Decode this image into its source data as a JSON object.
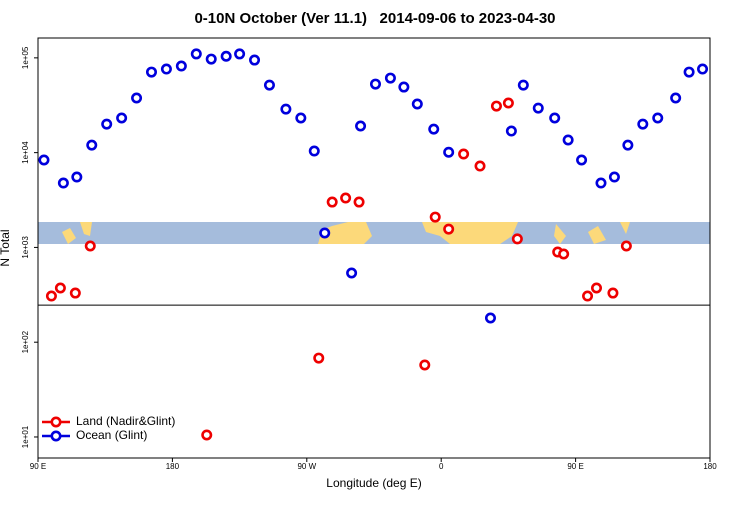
{
  "chart_data": {
    "type": "scatter",
    "title": "0-10N October (Ver 11.1)   2014-09-06 to 2023-04-30",
    "xlabel": "Longitude (deg E)",
    "ylabel": "N Total",
    "xlim": [
      90,
      540
    ],
    "xticks": [
      {
        "value": 90,
        "label": "90 E"
      },
      180,
      {
        "value": 270,
        "label": "90 W"
      },
      {
        "value": 360,
        "label": "0"
      },
      {
        "value": 450,
        "label": "90 E"
      },
      {
        "value": 540,
        "label": "180"
      }
    ],
    "ylim": [
      6,
      162000
    ],
    "log_y": true,
    "yticks": [
      {
        "value": 10,
        "label": "1e+01"
      },
      {
        "value": 100,
        "label": "1e+02"
      },
      {
        "value": 1000,
        "label": "1e+03"
      },
      {
        "value": 10000,
        "label": "1e+04"
      },
      {
        "value": 100000,
        "label": "1e+05"
      }
    ],
    "hline": 246,
    "legend": "lower left",
    "series": [
      {
        "name": "Land (Nadir&Glint)",
        "color": "#ee0000",
        "x": [
          99,
          105,
          115,
          125,
          203,
          278,
          287,
          296,
          305,
          349,
          356,
          365,
          375,
          386,
          397,
          405,
          411,
          438,
          442,
          458,
          464,
          475,
          484
        ],
        "values": [
          307,
          373,
          330,
          1035,
          10.5,
          68,
          3010,
          3320,
          3010,
          57.5,
          2090,
          1560,
          9670,
          7220,
          31000,
          33400,
          1230,
          894,
          852,
          307,
          373,
          330,
          1035
        ]
      },
      {
        "name": "Ocean (Glint)",
        "color": "#0000dd",
        "x": [
          94,
          107,
          116,
          126,
          136,
          146,
          156,
          166,
          176,
          186,
          196,
          206,
          216,
          225,
          235,
          245,
          256,
          266,
          275,
          282,
          300,
          306,
          316,
          326,
          335,
          344,
          355,
          365,
          393,
          407,
          415,
          425,
          436,
          445,
          454,
          467,
          476,
          485,
          495,
          505,
          517,
          526,
          535
        ],
        "values": [
          8360,
          4780,
          5530,
          12000,
          20000,
          23200,
          37700,
          70800,
          76200,
          82000,
          110000,
          97100,
          104000,
          110000,
          94800,
          51600,
          28800,
          23200,
          10400,
          1420,
          537,
          19100,
          52900,
          61200,
          49200,
          32600,
          17700,
          10100,
          180,
          16900,
          51600,
          29500,
          23200,
          13600,
          8360,
          4780,
          5530,
          12000,
          20000,
          23200,
          37700,
          70800,
          76200
        ]
      }
    ]
  }
}
